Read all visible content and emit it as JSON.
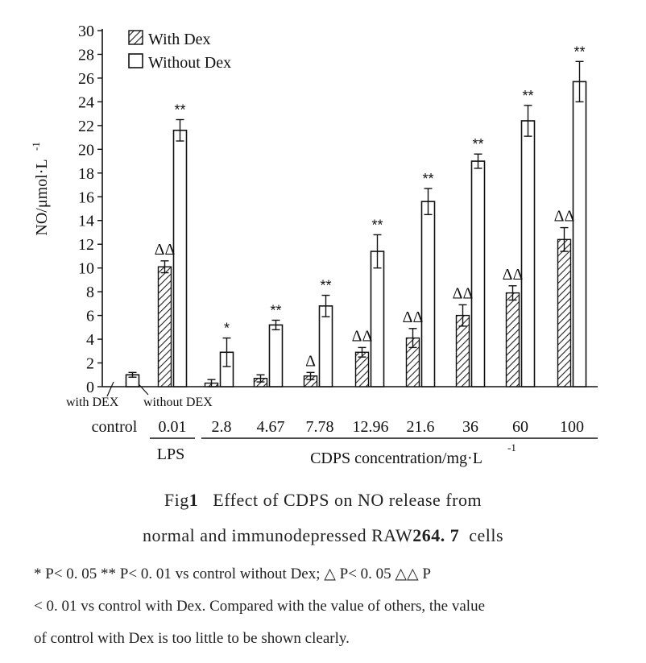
{
  "chart_data": {
    "type": "bar",
    "ylabel": "NO/μmol·L",
    "ylabel_exponent": "-1",
    "ylim": [
      0,
      30
    ],
    "yticks": [
      0,
      2,
      4,
      6,
      8,
      10,
      12,
      14,
      16,
      18,
      20,
      22,
      24,
      26,
      28,
      30
    ],
    "categories": [
      "control",
      "0.01",
      "2.8",
      "4.67",
      "7.78",
      "12.96",
      "21.6",
      "36",
      "60",
      "100"
    ],
    "legend": [
      "With Dex",
      "Without Dex"
    ],
    "legend_position": "top-left",
    "series": [
      {
        "name": "With Dex",
        "pattern": "hatched",
        "values": [
          0.0,
          10.1,
          0.3,
          0.7,
          0.9,
          2.9,
          4.1,
          6.0,
          7.9,
          12.4
        ],
        "errors": [
          0.0,
          0.5,
          0.3,
          0.3,
          0.3,
          0.4,
          0.8,
          0.9,
          0.6,
          1.0
        ],
        "annotations": [
          "",
          "ΔΔ",
          "",
          "",
          "Δ",
          "ΔΔ",
          "ΔΔ",
          "ΔΔ",
          "ΔΔ",
          "ΔΔ"
        ]
      },
      {
        "name": "Without Dex",
        "pattern": "white",
        "values": [
          1.0,
          21.6,
          2.9,
          5.2,
          6.8,
          11.4,
          15.6,
          19.0,
          22.4,
          25.7
        ],
        "errors": [
          0.2,
          0.9,
          1.2,
          0.4,
          0.9,
          1.4,
          1.1,
          0.6,
          1.3,
          1.7
        ],
        "annotations": [
          "",
          "**",
          "*",
          "**",
          "**",
          "**",
          "**",
          "**",
          "**",
          "**"
        ]
      }
    ],
    "control_labels": [
      "with DEX",
      "without DEX"
    ],
    "group_labels": [
      "control",
      "LPS",
      "CDPS concentration/mg·L"
    ],
    "group_label_exponent": "-1"
  },
  "caption": {
    "fig_prefix": "Fig",
    "fig_number": "1",
    "title_line1": "Effect of CDPS on NO release from",
    "title_line2_a": "normal and immunodepressed RAW",
    "title_line2_num": "264. 7",
    "title_line2_b": "cells",
    "note_line1": "* P< 0. 05  ** P< 0. 01  vs control without Dex;  △ P< 0. 05  △△ P",
    "note_line2": "< 0. 01  vs control with Dex. Compared with the value of others,  the value",
    "note_line3": "of control with Dex is too little to be shown clearly."
  }
}
